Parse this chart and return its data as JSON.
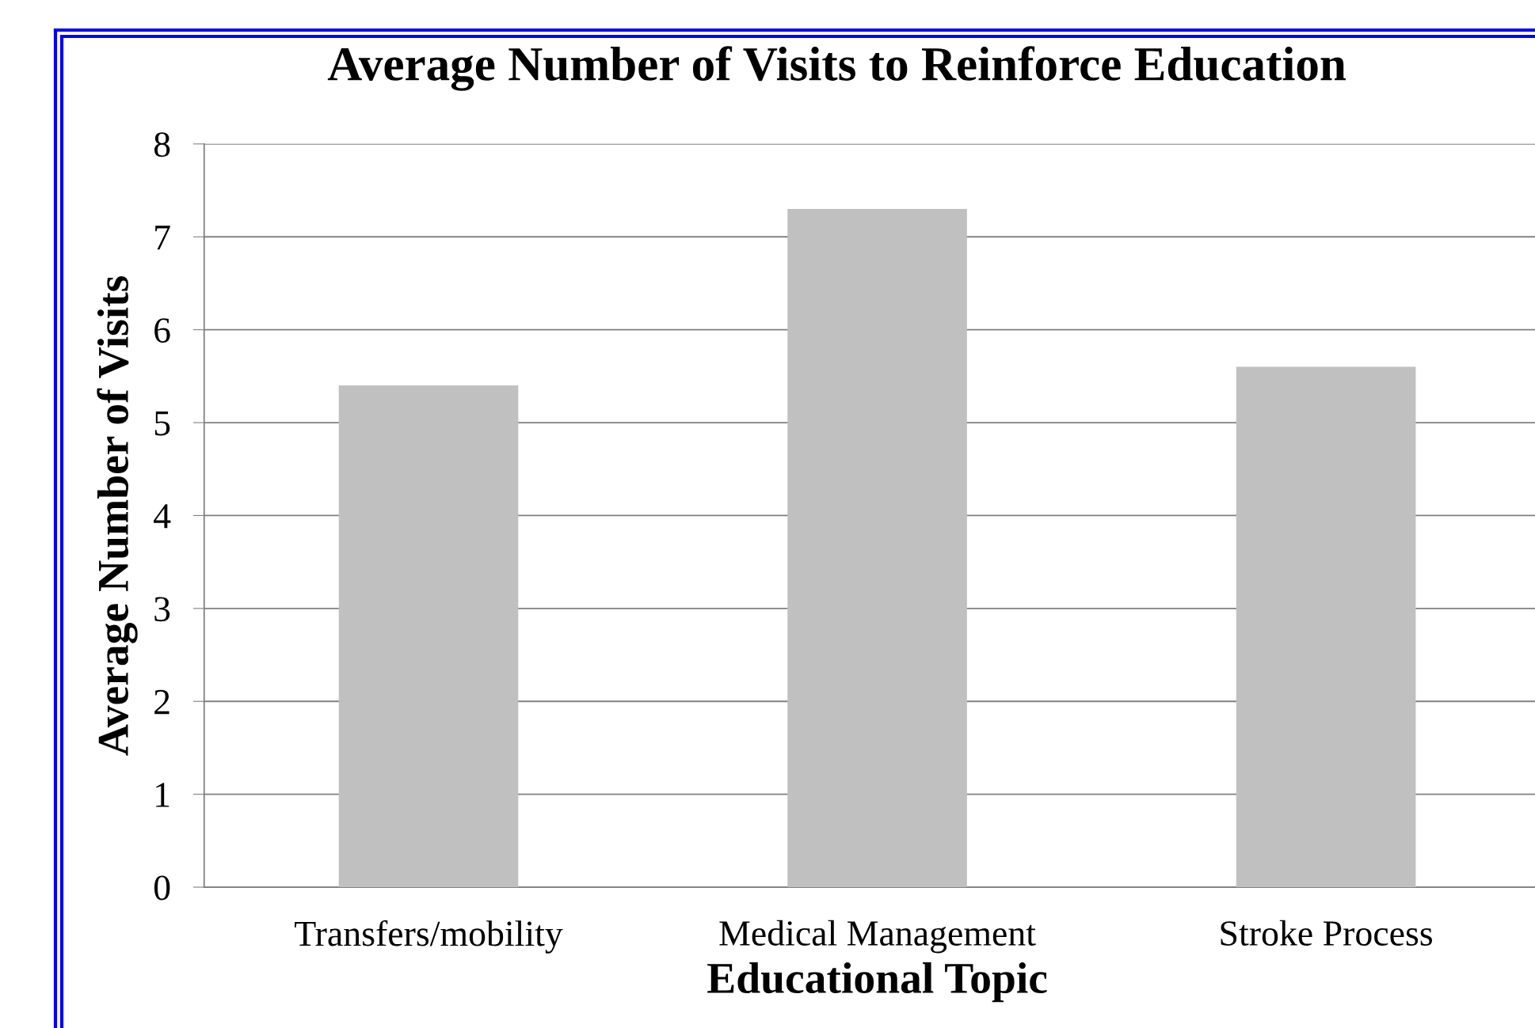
{
  "chart_data": {
    "type": "bar",
    "title": "Average Number of Visits to Reinforce Education",
    "xlabel": "Educational Topic",
    "ylabel": "Average Number of Visits",
    "categories": [
      "Transfers/mobility",
      "Medical Management",
      "Stroke Process"
    ],
    "values": [
      5.4,
      7.3,
      5.6
    ],
    "color": "#c0c0c0",
    "ylim": [
      0,
      8
    ],
    "yticks": [
      0,
      1,
      2,
      3,
      4,
      5,
      6,
      7,
      8
    ],
    "grid": "y"
  }
}
